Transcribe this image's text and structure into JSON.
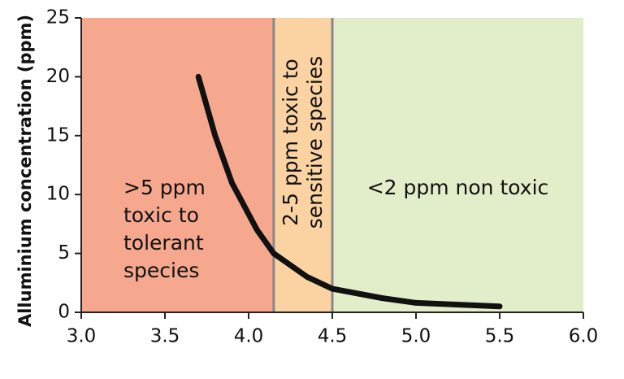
{
  "chart_data": {
    "type": "line",
    "y_label": "Alluminium concentration (ppm)",
    "xlim": [
      3.0,
      6.0
    ],
    "ylim": [
      0,
      25
    ],
    "xticks": [
      {
        "value": 3.0,
        "label": "3.0"
      },
      {
        "value": 3.5,
        "label": "3.5"
      },
      {
        "value": 4.0,
        "label": "4.0"
      },
      {
        "value": 4.5,
        "label": "4.5"
      },
      {
        "value": 5.0,
        "label": "5.0"
      },
      {
        "value": 5.5,
        "label": "5.5"
      },
      {
        "value": 6.0,
        "label": "6.0"
      }
    ],
    "yticks": [
      0,
      5,
      10,
      15,
      20,
      25
    ],
    "regions": [
      {
        "xlim": [
          3.0,
          4.15
        ],
        "color": "#f5a88e",
        "label": [
          ">5 ppm",
          "toxic to",
          "tolerant",
          "species"
        ]
      },
      {
        "xlim": [
          4.15,
          4.5
        ],
        "color": "#fbd3a3",
        "label": [
          "2-5 ppm toxic to",
          "sensitive species"
        ],
        "rotated": true
      },
      {
        "xlim": [
          4.5,
          6.0
        ],
        "color": "#e2edc9",
        "label": [
          "<2 ppm non toxic"
        ]
      }
    ],
    "series": [
      {
        "color": "#111111",
        "x": [
          3.7,
          3.8,
          3.9,
          4.05,
          4.15,
          4.35,
          4.5,
          4.8,
          5.0,
          5.5
        ],
        "values": [
          20,
          15,
          11,
          7,
          5,
          3,
          2,
          1.2,
          0.8,
          0.5
        ]
      }
    ]
  }
}
